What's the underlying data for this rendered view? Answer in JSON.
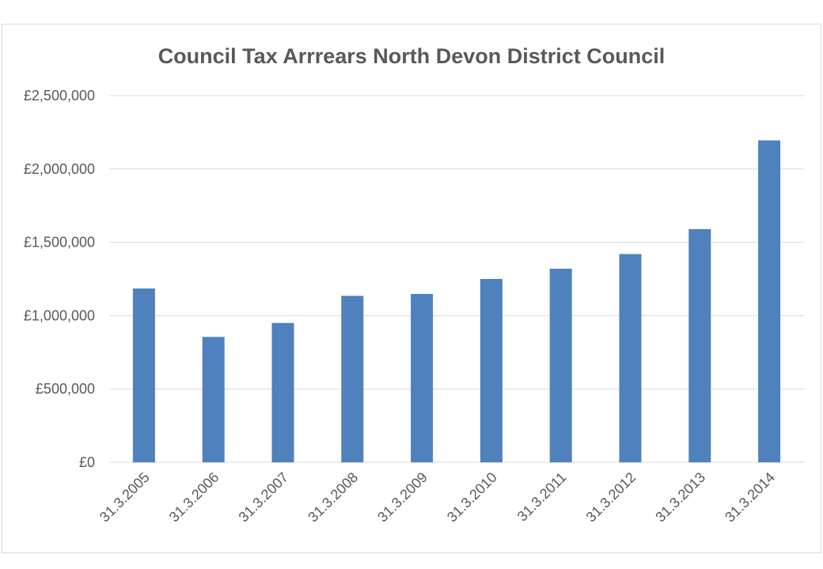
{
  "chart_data": {
    "type": "bar",
    "title": "Council Tax Arrrears North Devon District Council",
    "xlabel": "",
    "ylabel": "",
    "categories": [
      "31.3.2005",
      "31.3.2006",
      "31.3.2007",
      "31.3.2008",
      "31.3.2009",
      "31.3.2010",
      "31.3.2011",
      "31.3.2012",
      "31.3.2013",
      "31.3.2014"
    ],
    "values": [
      1185000,
      855000,
      950000,
      1135000,
      1148000,
      1250000,
      1320000,
      1420000,
      1590000,
      2195000
    ],
    "ylim": [
      0,
      2500000
    ],
    "yticks": [
      "£0",
      "£500,000",
      "£1,000,000",
      "£1,500,000",
      "£2,000,000",
      "£2,500,000"
    ],
    "ytick_values": [
      0,
      500000,
      1000000,
      1500000,
      2000000,
      2500000
    ],
    "grid": true,
    "legend": "none",
    "bar_color": "#4f81bd",
    "grid_color": "#d9d9d9",
    "text_color": "#595959"
  }
}
